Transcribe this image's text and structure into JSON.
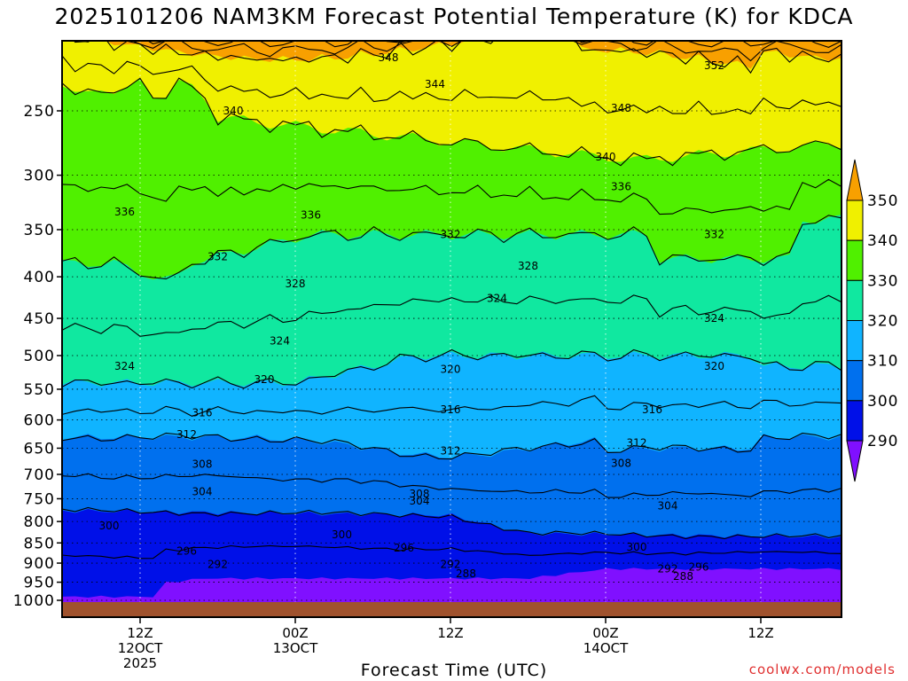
{
  "title": "2025101206 NAM3KM Forecast Potential Temperature (K) for KDCA",
  "credit": "coolwx.com/models",
  "chart_data": {
    "type": "contour",
    "xlabel": "Forecast Time (UTC)",
    "ylabel": "",
    "y_axis": "pressure (hPa), log scale, inverted",
    "ylim": [
      1000,
      200
    ],
    "xlim_hours": [
      -5,
      45
    ],
    "y_ticks": [
      250,
      300,
      350,
      400,
      450,
      500,
      550,
      600,
      650,
      700,
      750,
      800,
      850,
      900,
      950,
      1000
    ],
    "x_ticks": [
      {
        "hour": 0,
        "label": [
          "12Z",
          "12OCT",
          "2025"
        ]
      },
      {
        "hour": 10,
        "label": [
          "00Z",
          "13OCT"
        ]
      },
      {
        "hour": 20,
        "label": [
          "12Z"
        ]
      },
      {
        "hour": 30,
        "label": [
          "00Z",
          "14OCT"
        ]
      },
      {
        "hour": 40,
        "label": [
          "12Z"
        ]
      }
    ],
    "colorbar": {
      "levels": [
        290,
        300,
        310,
        320,
        330,
        340,
        350
      ],
      "colors": [
        "#8010ff",
        "#0010e8",
        "#0070ee",
        "#10b4ff",
        "#10e8a0",
        "#50f000",
        "#f0f000",
        "#f8a000"
      ],
      "extend": "both"
    },
    "contour_interval": 4,
    "contour_labels": [
      {
        "value": "348",
        "hour": 16,
        "p": 215
      },
      {
        "value": "352",
        "hour": 37,
        "p": 220
      },
      {
        "value": "344",
        "hour": 19,
        "p": 232
      },
      {
        "value": "340",
        "hour": 6,
        "p": 250
      },
      {
        "value": "348",
        "hour": 31,
        "p": 248
      },
      {
        "value": "340",
        "hour": 30,
        "p": 285
      },
      {
        "value": "336",
        "hour": 31,
        "p": 310
      },
      {
        "value": "336",
        "hour": -1,
        "p": 333
      },
      {
        "value": "336",
        "hour": 11,
        "p": 336
      },
      {
        "value": "332",
        "hour": 20,
        "p": 355
      },
      {
        "value": "332",
        "hour": 37,
        "p": 355
      },
      {
        "value": "332",
        "hour": 5,
        "p": 378
      },
      {
        "value": "328",
        "hour": 25,
        "p": 388
      },
      {
        "value": "328",
        "hour": 10,
        "p": 408
      },
      {
        "value": "324",
        "hour": 23,
        "p": 425
      },
      {
        "value": "324",
        "hour": 37,
        "p": 450
      },
      {
        "value": "324",
        "hour": 9,
        "p": 480
      },
      {
        "value": "324",
        "hour": -1,
        "p": 515
      },
      {
        "value": "320",
        "hour": 20,
        "p": 520
      },
      {
        "value": "320",
        "hour": 37,
        "p": 515
      },
      {
        "value": "320",
        "hour": 8,
        "p": 535
      },
      {
        "value": "316",
        "hour": 4,
        "p": 588
      },
      {
        "value": "316",
        "hour": 20,
        "p": 583
      },
      {
        "value": "316",
        "hour": 33,
        "p": 583
      },
      {
        "value": "312",
        "hour": 3,
        "p": 625
      },
      {
        "value": "312",
        "hour": 20,
        "p": 655
      },
      {
        "value": "312",
        "hour": 32,
        "p": 640
      },
      {
        "value": "308",
        "hour": 4,
        "p": 680
      },
      {
        "value": "308",
        "hour": 31,
        "p": 678
      },
      {
        "value": "304",
        "hour": 4,
        "p": 735
      },
      {
        "value": "308",
        "hour": 18,
        "p": 740
      },
      {
        "value": "304",
        "hour": 18,
        "p": 755
      },
      {
        "value": "304",
        "hour": 34,
        "p": 765
      },
      {
        "value": "300",
        "hour": -2,
        "p": 810
      },
      {
        "value": "300",
        "hour": 13,
        "p": 830
      },
      {
        "value": "296",
        "hour": 3,
        "p": 870
      },
      {
        "value": "296",
        "hour": 17,
        "p": 862
      },
      {
        "value": "300",
        "hour": 32,
        "p": 860
      },
      {
        "value": "292",
        "hour": 5,
        "p": 903
      },
      {
        "value": "292",
        "hour": 20,
        "p": 903
      },
      {
        "value": "288",
        "hour": 21,
        "p": 928
      },
      {
        "value": "292",
        "hour": 34,
        "p": 915
      },
      {
        "value": "296",
        "hour": 36,
        "p": 910
      },
      {
        "value": "288",
        "hour": 35,
        "p": 935
      }
    ]
  }
}
